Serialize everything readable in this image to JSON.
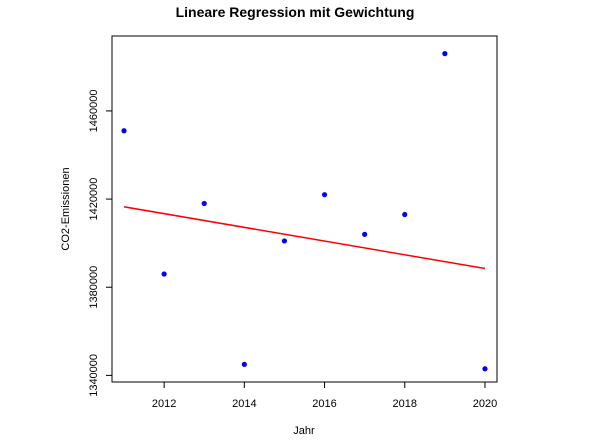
{
  "chart_data": {
    "type": "scatter",
    "title": "Lineare Regression mit Gewichtung",
    "xlabel": "Jahr",
    "ylabel": "CO2-Emissionen",
    "xlim": [
      2010.7,
      2020.3
    ],
    "ylim": [
      1337000,
      1494000
    ],
    "x_ticks": [
      2012,
      2014,
      2016,
      2018,
      2020
    ],
    "y_ticks": [
      1340000,
      1380000,
      1420000,
      1460000
    ],
    "x_tick_labels": [
      "2012",
      "2014",
      "2016",
      "2018",
      "2020"
    ],
    "y_tick_labels": [
      "1340000",
      "1380000",
      "1420000",
      "1460000"
    ],
    "points": [
      {
        "x": 2011,
        "y": 1451000
      },
      {
        "x": 2012,
        "y": 1386000
      },
      {
        "x": 2013,
        "y": 1418000
      },
      {
        "x": 2014,
        "y": 1345000
      },
      {
        "x": 2015,
        "y": 1401000
      },
      {
        "x": 2016,
        "y": 1422000
      },
      {
        "x": 2017,
        "y": 1404000
      },
      {
        "x": 2018,
        "y": 1413000
      },
      {
        "x": 2019,
        "y": 1486000
      },
      {
        "x": 2020,
        "y": 1343000
      }
    ],
    "regression_line": {
      "x": [
        2011,
        2020
      ],
      "y": [
        1416500,
        1388500
      ]
    },
    "point_color": "#0000ff",
    "line_color": "#ff0000",
    "grid": false,
    "legend": "none"
  }
}
